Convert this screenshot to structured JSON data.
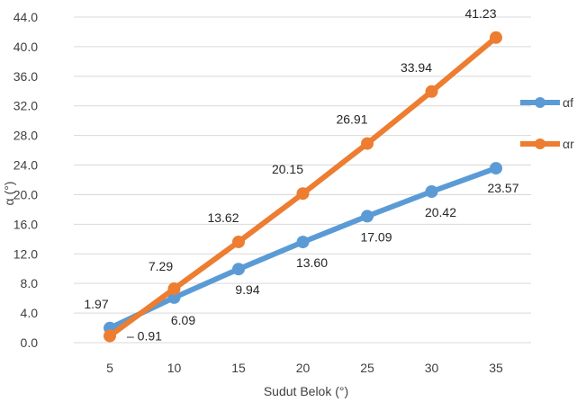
{
  "chart_data": {
    "type": "line",
    "title": "",
    "xlabel": "Sudut Belok (°)",
    "ylabel": "α (°)",
    "categories": [
      "5",
      "10",
      "15",
      "20",
      "25",
      "30",
      "35"
    ],
    "ylim": [
      0,
      44
    ],
    "y_ticks": [
      "0.0",
      "4.0",
      "8.0",
      "12.0",
      "16.0",
      "20.0",
      "24.0",
      "28.0",
      "32.0",
      "36.0",
      "40.0",
      "44.0"
    ],
    "grid": "horizontal",
    "legend_position": "right",
    "series": [
      {
        "name": "αf",
        "color": "#5b9bd5",
        "values": [
          1.97,
          6.09,
          9.94,
          13.6,
          17.09,
          20.42,
          23.57
        ],
        "labels": [
          "1.97",
          "6.09",
          "9.94",
          "13.60",
          "17.09",
          "20.42",
          "23.57"
        ]
      },
      {
        "name": "αr",
        "color": "#ed7d31",
        "values": [
          0.91,
          7.29,
          13.62,
          20.15,
          26.91,
          33.94,
          41.23
        ],
        "labels": [
          "0.91",
          "7.29",
          "13.62",
          "20.15",
          "26.91",
          "33.94",
          "41.23"
        ]
      }
    ]
  }
}
